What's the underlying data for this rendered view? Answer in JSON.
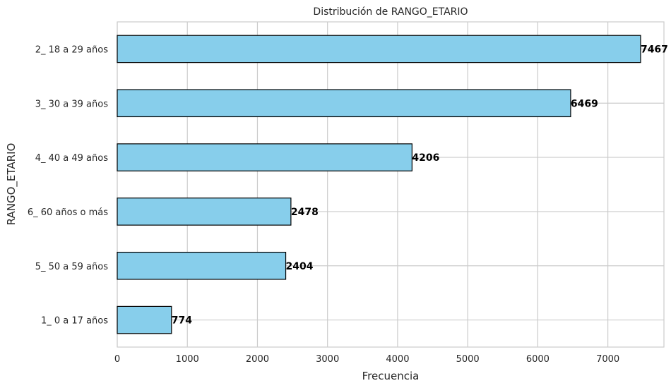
{
  "chart_data": {
    "type": "bar",
    "orientation": "horizontal",
    "title": "Distribución de RANGO_ETARIO",
    "xlabel": "Frecuencia",
    "ylabel": "RANGO_ETARIO",
    "categories": [
      "2_ 18 a 29 años",
      "3_ 30 a 39 años",
      "4_ 40 a 49 años",
      "6_ 60 años o más",
      "5_ 50 a 59 años",
      "1_ 0 a 17 años"
    ],
    "values": [
      7467,
      6469,
      4206,
      2478,
      2404,
      774
    ],
    "xlim": [
      0,
      7800
    ],
    "xticks": [
      0,
      1000,
      2000,
      3000,
      4000,
      5000,
      6000,
      7000
    ],
    "grid": true,
    "bar_color": "#87CEEB",
    "bar_edge_color": "#000000"
  }
}
